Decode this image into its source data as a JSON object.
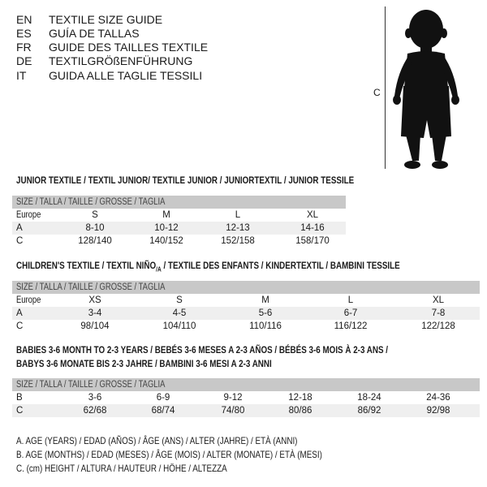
{
  "languages": [
    {
      "code": "EN",
      "text": "TEXTILE SIZE GUIDE"
    },
    {
      "code": "ES",
      "text": "GUÍA DE TALLAS"
    },
    {
      "code": "FR",
      "text": "GUIDE DES TAILLES TEXTILE"
    },
    {
      "code": "DE",
      "text": "TEXTILGRÖßENFÜHRUNG"
    },
    {
      "code": "IT",
      "text": "GUIDA ALLE TAGLIE TESSILI"
    }
  ],
  "figure": {
    "measure_label": "C"
  },
  "junior": {
    "title": "JUNIOR TEXTILE / TEXTIL JUNIOR/ TEXTILE JUNIOR / JUNIORTEXTIL / JUNIOR TESSILE",
    "header": "SIZE / TALLA / TAILLE / GRÖSSE / TAGLIA",
    "rows": [
      {
        "label": "Europe",
        "cells": [
          "S",
          "M",
          "L",
          "XL"
        ]
      },
      {
        "label": "A",
        "cells": [
          "8-10",
          "10-12",
          "12-13",
          "14-16"
        ]
      },
      {
        "label": "C",
        "cells": [
          "128/140",
          "140/152",
          "152/158",
          "158/170"
        ]
      }
    ]
  },
  "children": {
    "title_a": "CHILDREN'S TEXTILE / TEXTIL NIÑO",
    "title_sub": "/A",
    "title_b": " / TEXTILE DES ENFANTS / KINDERTEXTIL / BAMBINI TESSILE",
    "header": "SIZE / TALLA / TAILLE / GRÖSSE / TAGLIA",
    "rows": [
      {
        "label": "Europe",
        "cells": [
          "XS",
          "S",
          "M",
          "L",
          "XL"
        ]
      },
      {
        "label": "A",
        "cells": [
          "3-4",
          "4-5",
          "5-6",
          "6-7",
          "7-8"
        ]
      },
      {
        "label": "C",
        "cells": [
          "98/104",
          "104/110",
          "110/116",
          "116/122",
          "122/128"
        ]
      }
    ]
  },
  "babies": {
    "title_line1": "BABIES 3-6 MONTH TO 2-3 YEARS / BEBÉS 3-6 MESES A 2-3 AÑOS / BÉBÉS 3-6 MOIS À 2-3 ANS /",
    "title_line2": "BABYS 3-6 MONATE BIS 2-3 JAHRE / BAMBINI 3-6 MESI A 2-3 ANNI",
    "header": "SIZE / TALLA / TAILLE / GRÖSSE / TAGLIA",
    "rows": [
      {
        "label": "B",
        "cells": [
          "3-6",
          "6-9",
          "9-12",
          "12-18",
          "18-24",
          "24-36"
        ]
      },
      {
        "label": "C",
        "cells": [
          "62/68",
          "68/74",
          "74/80",
          "80/86",
          "86/92",
          "92/98"
        ]
      }
    ]
  },
  "notes": [
    "A. AGE (YEARS) / EDAD (AÑOS) / ÂGE (ANS) / ALTER (JAHRE) / ETÀ (ANNI)",
    "B. AGE (MONTHS) / EDAD (MESES) / ÂGE (MOIS) / ALTER (MONATE) / ETÀ (MESI)",
    "C. (cm) HEIGHT / ALTURA / HAUTEUR / HÖHE / ALTEZZA"
  ]
}
